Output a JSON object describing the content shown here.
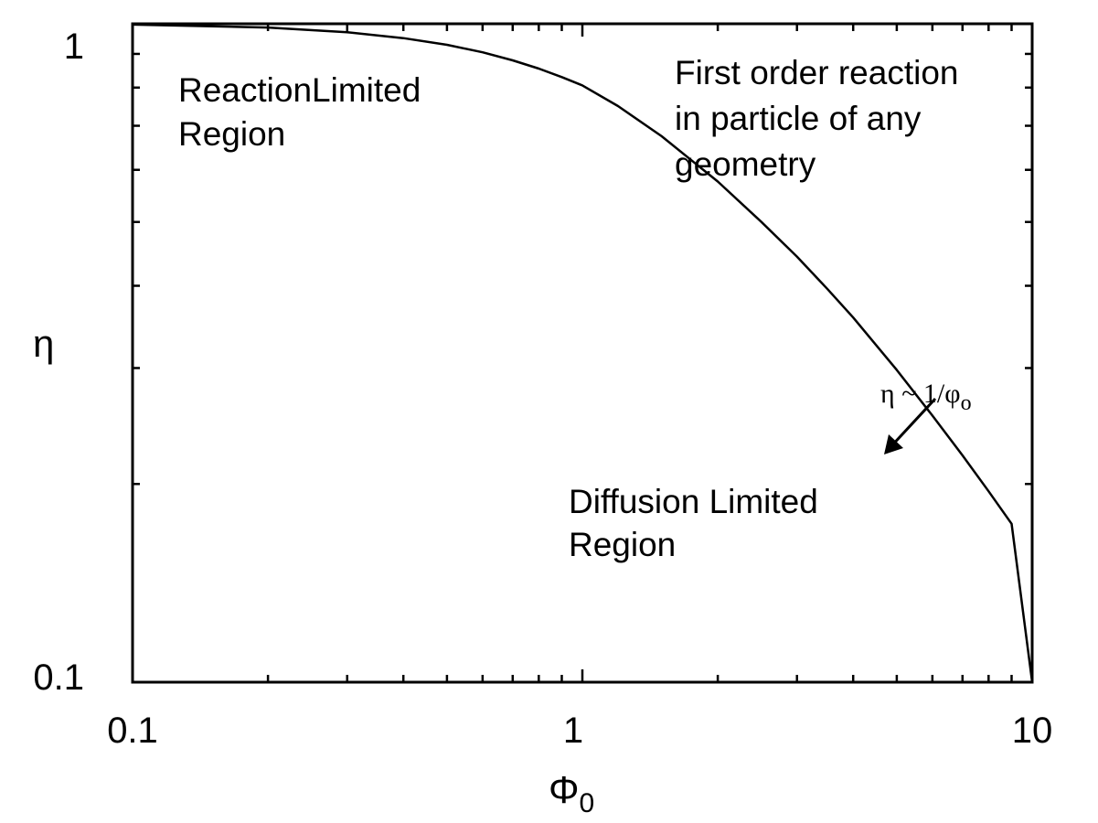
{
  "chart_data": {
    "type": "line",
    "xscale": "log",
    "yscale": "log",
    "xlim": [
      0.1,
      10
    ],
    "ylim": [
      0.1,
      1
    ],
    "xlabel": {
      "main": "Φ",
      "sub": "0"
    },
    "ylabel": "η",
    "x_tick_labels": [
      "0.1",
      "1",
      "10"
    ],
    "y_tick_labels": [
      "0.1",
      "1"
    ],
    "grid": false,
    "series": [
      {
        "x": [
          0.1,
          0.2,
          0.3,
          0.4,
          0.5,
          0.6,
          0.7,
          0.8,
          0.9,
          1.0,
          1.2,
          1.5,
          2.0,
          2.5,
          3.0,
          3.5,
          4.0,
          5.0,
          6.0,
          7.0,
          8.0,
          9.0,
          10.0
        ],
        "y": [
          0.997,
          0.987,
          0.971,
          0.951,
          0.929,
          0.905,
          0.88,
          0.855,
          0.83,
          0.806,
          0.75,
          0.675,
          0.576,
          0.5,
          0.443,
          0.396,
          0.358,
          0.298,
          0.254,
          0.221,
          0.195,
          0.174,
          0.1
        ]
      }
    ],
    "annotations": {
      "reaction_region": [
        "ReactionLimited",
        "Region"
      ],
      "first_order": [
        "First order reaction",
        "in particle of any",
        "geometry"
      ],
      "diffusion_region": [
        "Diffusion Limited",
        "Region"
      ],
      "asymptote": {
        "eta": "η ~ 1/φ",
        "sub": "o"
      }
    }
  }
}
